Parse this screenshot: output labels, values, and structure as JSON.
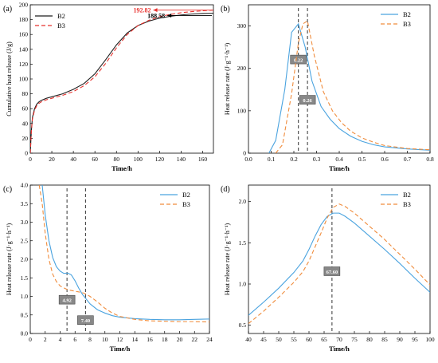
{
  "colors": {
    "b2": "#1f1f1f",
    "b3": "#e8302c",
    "blue": "#4aa3df",
    "orange": "#f08c3c",
    "mark": "#d62020",
    "box": "#888888"
  },
  "chart_data": [
    {
      "type": "line",
      "panel_label": "(a)",
      "xlabel": "Time/h",
      "ylabel": "Cumulative heat release (J/g)",
      "xlim": [
        0,
        170
      ],
      "ylim": [
        0,
        200
      ],
      "xticks": [
        0,
        20,
        40,
        60,
        80,
        100,
        120,
        140,
        160
      ],
      "yticks": [
        0,
        20,
        40,
        60,
        80,
        100,
        120,
        140,
        160,
        180,
        200
      ],
      "legend": "top-left",
      "series": [
        {
          "name": "B2",
          "color": "#1f1f1f",
          "dash": "",
          "x": [
            0,
            1,
            2,
            4,
            6,
            8,
            10,
            15,
            20,
            30,
            40,
            50,
            60,
            70,
            80,
            90,
            100,
            110,
            120,
            130,
            140,
            150,
            160,
            170
          ],
          "y": [
            0,
            30,
            48,
            60,
            66,
            69,
            71,
            74,
            76,
            80,
            86,
            94,
            107,
            126,
            146,
            162,
            172,
            178,
            182,
            184.5,
            186.3,
            187.5,
            188.2,
            188.58
          ]
        },
        {
          "name": "B3",
          "color": "#e8302c",
          "dash": "5,3",
          "x": [
            0,
            1,
            2,
            4,
            6,
            8,
            10,
            15,
            20,
            30,
            40,
            50,
            60,
            70,
            80,
            90,
            100,
            110,
            120,
            130,
            140,
            150,
            160,
            170
          ],
          "y": [
            0,
            28,
            46,
            58,
            64,
            67,
            69,
            72,
            74,
            78,
            83,
            91,
            103,
            121,
            142,
            160,
            172,
            179,
            184,
            187,
            189.3,
            190.8,
            191.9,
            192.82
          ]
        }
      ],
      "annotations": [
        {
          "text": "192.82",
          "x": 112,
          "y": 192.82,
          "color": "#e8302c",
          "arrow_to": 170
        },
        {
          "text": "188.58",
          "x": 125,
          "y": 185.5,
          "color": "#000000",
          "arrow_to": 170
        }
      ]
    },
    {
      "type": "line",
      "panel_label": "(b)",
      "xlabel": "Time/h",
      "ylabel": "Heat release rate (J·g⁻¹·h⁻¹)",
      "xlim": [
        0,
        0.8
      ],
      "ylim": [
        0,
        350
      ],
      "xticks": [
        0.0,
        0.1,
        0.2,
        0.3,
        0.4,
        0.5,
        0.6,
        0.7,
        0.8
      ],
      "yticks": [
        0,
        100,
        200,
        300
      ],
      "legend": "top-right",
      "series": [
        {
          "name": "B2",
          "color": "#4aa3df",
          "dash": "",
          "x": [
            0.09,
            0.12,
            0.16,
            0.19,
            0.22,
            0.25,
            0.28,
            0.32,
            0.36,
            0.4,
            0.45,
            0.5,
            0.55,
            0.6,
            0.7,
            0.8
          ],
          "y": [
            0,
            30,
            150,
            285,
            305,
            250,
            170,
            110,
            80,
            58,
            40,
            28,
            20,
            15,
            10,
            7
          ]
        },
        {
          "name": "B3",
          "color": "#f08c3c",
          "dash": "5,3",
          "x": [
            0.12,
            0.15,
            0.19,
            0.22,
            0.24,
            0.26,
            0.29,
            0.33,
            0.37,
            0.41,
            0.45,
            0.5,
            0.55,
            0.6,
            0.7,
            0.8
          ],
          "y": [
            0,
            20,
            140,
            260,
            305,
            312,
            230,
            145,
            100,
            72,
            52,
            36,
            26,
            18,
            11,
            8
          ]
        }
      ],
      "markers": [
        {
          "x": 0.22,
          "label": "0.22",
          "label_y": 220
        },
        {
          "x": 0.26,
          "label": "0.26",
          "label_y": 125
        }
      ]
    },
    {
      "type": "line",
      "panel_label": "(c)",
      "xlabel": "Time/h",
      "ylabel": "Heat release rate (J·g⁻¹·h⁻¹)",
      "xlim": [
        0,
        24
      ],
      "ylim": [
        0,
        4.0
      ],
      "xticks": [
        0,
        2,
        4,
        6,
        8,
        10,
        12,
        14,
        16,
        18,
        20,
        22,
        24
      ],
      "yticks": [
        0.0,
        0.5,
        1.0,
        1.5,
        2.0,
        2.5,
        3.0,
        3.5,
        4.0
      ],
      "legend": "top-right",
      "series": [
        {
          "name": "B2",
          "color": "#4aa3df",
          "dash": "",
          "x": [
            1.6,
            2,
            2.5,
            3,
            3.5,
            4,
            4.5,
            5,
            5.5,
            6,
            6.5,
            7,
            8,
            9,
            10,
            11,
            12,
            14,
            16,
            18,
            20,
            22,
            24
          ],
          "y": [
            4.0,
            3.2,
            2.5,
            2.05,
            1.8,
            1.68,
            1.62,
            1.63,
            1.58,
            1.42,
            1.22,
            1.05,
            0.8,
            0.64,
            0.55,
            0.48,
            0.44,
            0.4,
            0.38,
            0.37,
            0.37,
            0.38,
            0.39
          ]
        },
        {
          "name": "B3",
          "color": "#f08c3c",
          "dash": "5,3",
          "x": [
            1.2,
            1.6,
            2,
            2.5,
            3,
            3.5,
            4,
            5,
            6,
            7,
            7.4,
            8,
            9,
            10,
            11,
            12,
            14,
            16,
            18,
            20,
            22,
            24
          ],
          "y": [
            4.0,
            3.5,
            2.7,
            2.0,
            1.6,
            1.4,
            1.28,
            1.18,
            1.14,
            1.1,
            1.07,
            1.0,
            0.85,
            0.68,
            0.55,
            0.46,
            0.38,
            0.34,
            0.33,
            0.32,
            0.32,
            0.31
          ]
        }
      ],
      "markers": [
        {
          "x": 4.92,
          "label": "4.92",
          "label_y": 0.9
        },
        {
          "x": 7.4,
          "label": "7.40",
          "label_y": 0.35
        }
      ]
    },
    {
      "type": "line",
      "panel_label": "(d)",
      "xlabel": "Time/h",
      "ylabel": "Heat release rate (J·g⁻¹·h⁻¹)",
      "xlim": [
        40,
        100
      ],
      "ylim": [
        0.4,
        2.2
      ],
      "xticks": [
        40,
        45,
        50,
        55,
        60,
        65,
        70,
        75,
        80,
        85,
        90,
        95,
        100
      ],
      "yticks": [
        0.5,
        1.0,
        1.5,
        2.0
      ],
      "legend": "top-right",
      "series": [
        {
          "name": "B2",
          "color": "#4aa3df",
          "dash": "",
          "x": [
            40,
            45,
            50,
            55,
            58,
            60,
            62,
            64,
            66,
            68,
            70,
            72,
            75,
            80,
            85,
            90,
            95,
            100
          ],
          "y": [
            0.62,
            0.78,
            0.95,
            1.14,
            1.28,
            1.42,
            1.58,
            1.72,
            1.82,
            1.86,
            1.86,
            1.82,
            1.74,
            1.58,
            1.42,
            1.25,
            1.07,
            0.9
          ]
        },
        {
          "name": "B3",
          "color": "#f08c3c",
          "dash": "5,3",
          "x": [
            40,
            45,
            50,
            55,
            58,
            60,
            62,
            64,
            66,
            68,
            70,
            72,
            75,
            80,
            85,
            90,
            95,
            100
          ],
          "y": [
            0.52,
            0.67,
            0.84,
            1.02,
            1.15,
            1.28,
            1.45,
            1.62,
            1.8,
            1.93,
            1.97,
            1.94,
            1.86,
            1.7,
            1.54,
            1.36,
            1.18,
            0.99
          ]
        }
      ],
      "markers": [
        {
          "x": 67.6,
          "label": "67.60",
          "label_y": 1.15
        }
      ]
    }
  ]
}
